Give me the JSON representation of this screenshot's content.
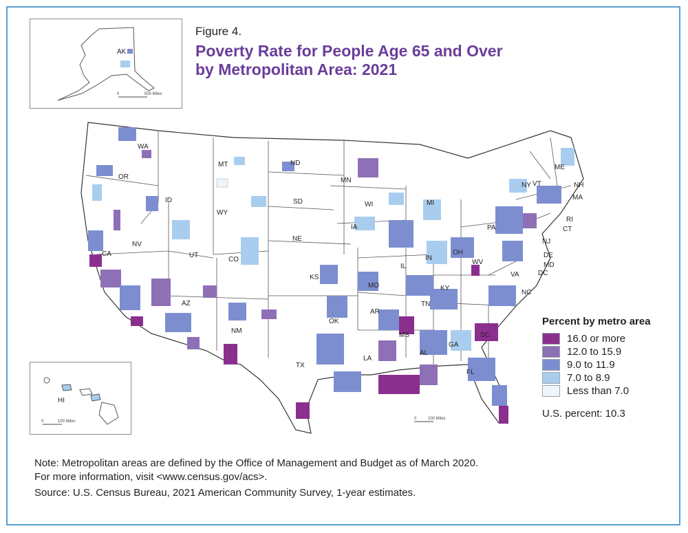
{
  "figure_label": "Figure 4.",
  "title_line1": "Poverty Rate for People Age 65 and Over",
  "title_line2": "by Metropolitan Area: 2021",
  "insets": {
    "alaska": {
      "label": "AK",
      "scale": "500 Miles",
      "scale_zero": "0"
    },
    "hawaii": {
      "label": "HI",
      "scale": "100 Miles",
      "scale_zero": "0"
    },
    "mainland_scale": {
      "scale": "100 Miles",
      "scale_zero": "0"
    }
  },
  "legend": {
    "title": "Percent by metro area",
    "items": [
      {
        "label": "16.0 or more",
        "color": "#8b2f8f"
      },
      {
        "label": "12.0 to 15.9",
        "color": "#8e70b6"
      },
      {
        "label": "9.0 to 11.9",
        "color": "#7d8ed0"
      },
      {
        "label": "7.0 to 8.9",
        "color": "#a9cdee"
      },
      {
        "label": "Less than 7.0",
        "color": "#eef6fc"
      }
    ]
  },
  "us_percent": "U.S. percent: 10.3",
  "notes": {
    "line1": "Note: Metropolitan areas are defined by the Office of Management and Budget as of March 2020.",
    "line2": "For more information, visit <www.census.gov/acs>.",
    "line3": "Source: U.S. Census Bureau, 2021 American Community Survey, 1-year estimates."
  },
  "state_labels": [
    "WA",
    "OR",
    "CA",
    "NV",
    "ID",
    "MT",
    "WY",
    "UT",
    "CO",
    "AZ",
    "NM",
    "ND",
    "SD",
    "NE",
    "KS",
    "OK",
    "TX",
    "MN",
    "IA",
    "MO",
    "AR",
    "LA",
    "WI",
    "IL",
    "MI",
    "IN",
    "OH",
    "KY",
    "TN",
    "MS",
    "AL",
    "GA",
    "FL",
    "SC",
    "NC",
    "VA",
    "WV",
    "PA",
    "NY",
    "VT",
    "NH",
    "ME",
    "MA",
    "RI",
    "CT",
    "NJ",
    "DE",
    "MD",
    "DC"
  ]
}
